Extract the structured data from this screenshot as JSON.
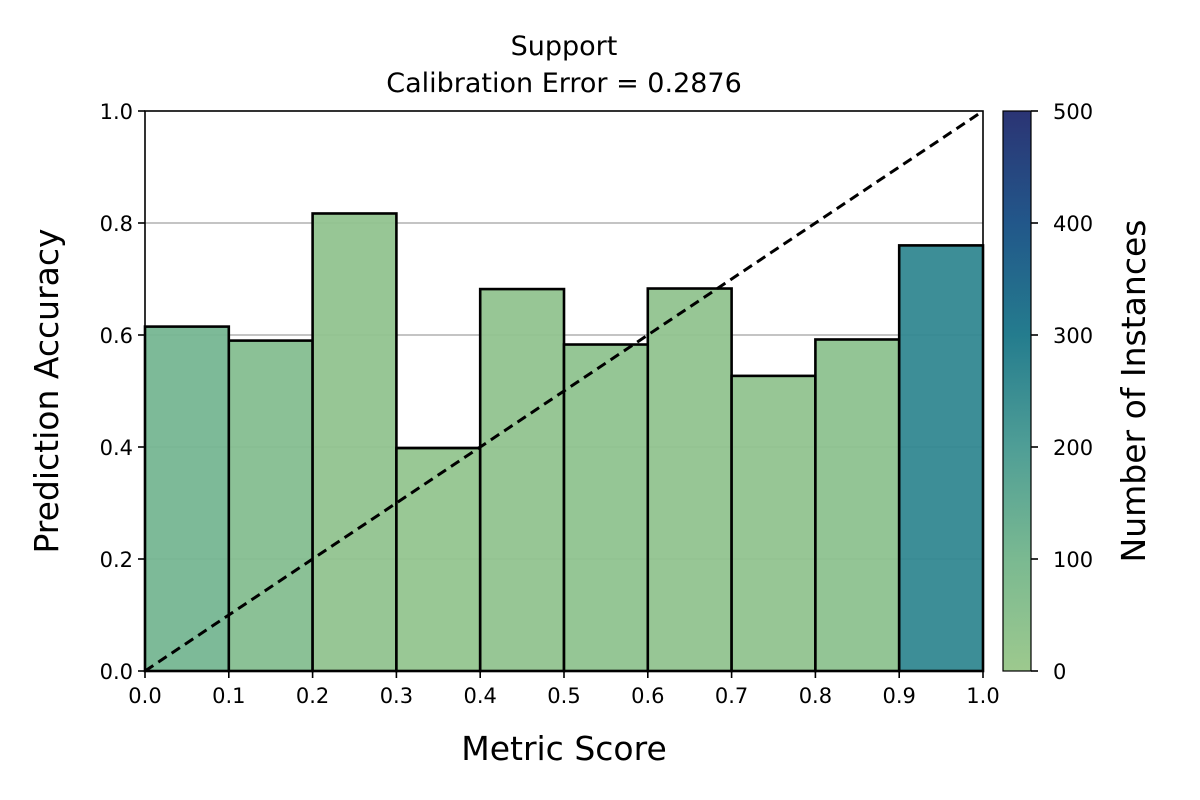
{
  "chart_data": {
    "type": "bar",
    "title": "Support",
    "subtitle": "Calibration Error = 0.2876",
    "xlabel": "Metric Score",
    "ylabel": "Prediction Accuracy",
    "colorbar_label": "Number of Instances",
    "xlim": [
      0,
      1
    ],
    "ylim": [
      0,
      1
    ],
    "x_ticks": [
      "0.0",
      "0.1",
      "0.2",
      "0.3",
      "0.4",
      "0.5",
      "0.6",
      "0.7",
      "0.8",
      "0.9",
      "1.0"
    ],
    "y_ticks": [
      "0.0",
      "0.2",
      "0.4",
      "0.6",
      "0.8",
      "1.0"
    ],
    "colorbar_ticks": [
      "0",
      "100",
      "200",
      "300",
      "400",
      "500"
    ],
    "colorbar_range": [
      0,
      500
    ],
    "colorbar_colors": [
      "#9dc98e",
      "#7ab991",
      "#4f9e96",
      "#247c8e",
      "#22578a",
      "#2b3474"
    ],
    "grid": "y",
    "bins": [
      {
        "x0": 0.0,
        "x1": 0.1,
        "accuracy": 0.615,
        "count": 110
      },
      {
        "x0": 0.1,
        "x1": 0.2,
        "accuracy": 0.59,
        "count": 70
      },
      {
        "x0": 0.2,
        "x1": 0.3,
        "accuracy": 0.817,
        "count": 35
      },
      {
        "x0": 0.3,
        "x1": 0.4,
        "accuracy": 0.398,
        "count": 25
      },
      {
        "x0": 0.4,
        "x1": 0.5,
        "accuracy": 0.682,
        "count": 35
      },
      {
        "x0": 0.5,
        "x1": 0.6,
        "accuracy": 0.583,
        "count": 40
      },
      {
        "x0": 0.6,
        "x1": 0.7,
        "accuracy": 0.683,
        "count": 35
      },
      {
        "x0": 0.7,
        "x1": 0.8,
        "accuracy": 0.527,
        "count": 35
      },
      {
        "x0": 0.8,
        "x1": 0.9,
        "accuracy": 0.592,
        "count": 45
      },
      {
        "x0": 0.9,
        "x1": 1.0,
        "accuracy": 0.76,
        "count": 265
      }
    ],
    "reference_line": {
      "x": [
        0,
        1
      ],
      "y": [
        0,
        1
      ],
      "style": "dashed"
    }
  }
}
